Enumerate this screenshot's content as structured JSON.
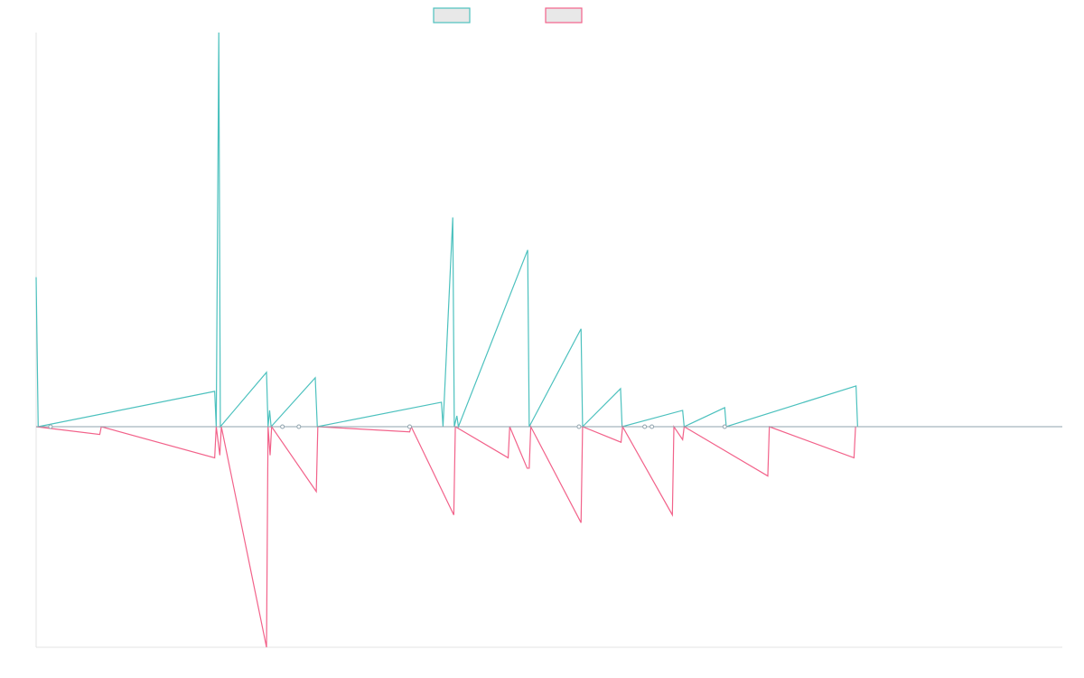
{
  "chart_data": {
    "type": "line",
    "title": "",
    "xlabel": "",
    "ylabel": "",
    "legend_position": "top-center",
    "grid": false,
    "x_range": [
      0,
      1000
    ],
    "ylim": [
      -120,
      105
    ],
    "baseline_color": "#8fa3ad",
    "series": [
      {
        "legend_label": "",
        "color": "#4cc1be",
        "values": [
          [
            0,
            55
          ],
          [
            2,
            0
          ],
          [
            174,
            13
          ],
          [
            175.5,
            0
          ],
          [
            178,
            145
          ],
          [
            179.5,
            0
          ],
          [
            224.5,
            20
          ],
          [
            226,
            0
          ],
          [
            227.5,
            6
          ],
          [
            229,
            0
          ],
          [
            272,
            18
          ],
          [
            274,
            0
          ],
          [
            395,
            9
          ],
          [
            396.5,
            0
          ],
          [
            406,
            77
          ],
          [
            407.5,
            0
          ],
          [
            410,
            4
          ],
          [
            411.5,
            0
          ],
          [
            479,
            65
          ],
          [
            480.5,
            0
          ],
          [
            531,
            36
          ],
          [
            532.5,
            0
          ],
          [
            569.5,
            14
          ],
          [
            571,
            0
          ],
          [
            630,
            6
          ],
          [
            631.5,
            0
          ],
          [
            671,
            7
          ],
          [
            672.5,
            0
          ],
          [
            799,
            15
          ],
          [
            800.5,
            0
          ]
        ]
      },
      {
        "legend_label": "",
        "color": "#f2628a",
        "values": [
          [
            0,
            0
          ],
          [
            62,
            -3
          ],
          [
            63.5,
            0
          ],
          [
            174,
            -12
          ],
          [
            175.5,
            0
          ],
          [
            179,
            -11
          ],
          [
            180.5,
            0
          ],
          [
            224.5,
            -85
          ],
          [
            226,
            0
          ],
          [
            228,
            -11
          ],
          [
            229.5,
            0
          ],
          [
            273,
            -25
          ],
          [
            274.5,
            0
          ],
          [
            364,
            -2
          ],
          [
            365.5,
            0
          ],
          [
            407,
            -34
          ],
          [
            408.5,
            0
          ],
          [
            460,
            -12
          ],
          [
            461.5,
            0
          ],
          [
            478.5,
            -16
          ],
          [
            480.5,
            -16
          ],
          [
            482,
            0
          ],
          [
            531,
            -37
          ],
          [
            532.5,
            0
          ],
          [
            570,
            -6
          ],
          [
            571.5,
            0
          ],
          [
            620,
            -34
          ],
          [
            621.5,
            0
          ],
          [
            630,
            -5
          ],
          [
            631.5,
            0
          ],
          [
            713,
            -19
          ],
          [
            714.5,
            0
          ],
          [
            797,
            -12
          ],
          [
            798.5,
            0
          ]
        ]
      }
    ],
    "markers": [
      14,
      240,
      256,
      364,
      529,
      593,
      600,
      671
    ]
  }
}
